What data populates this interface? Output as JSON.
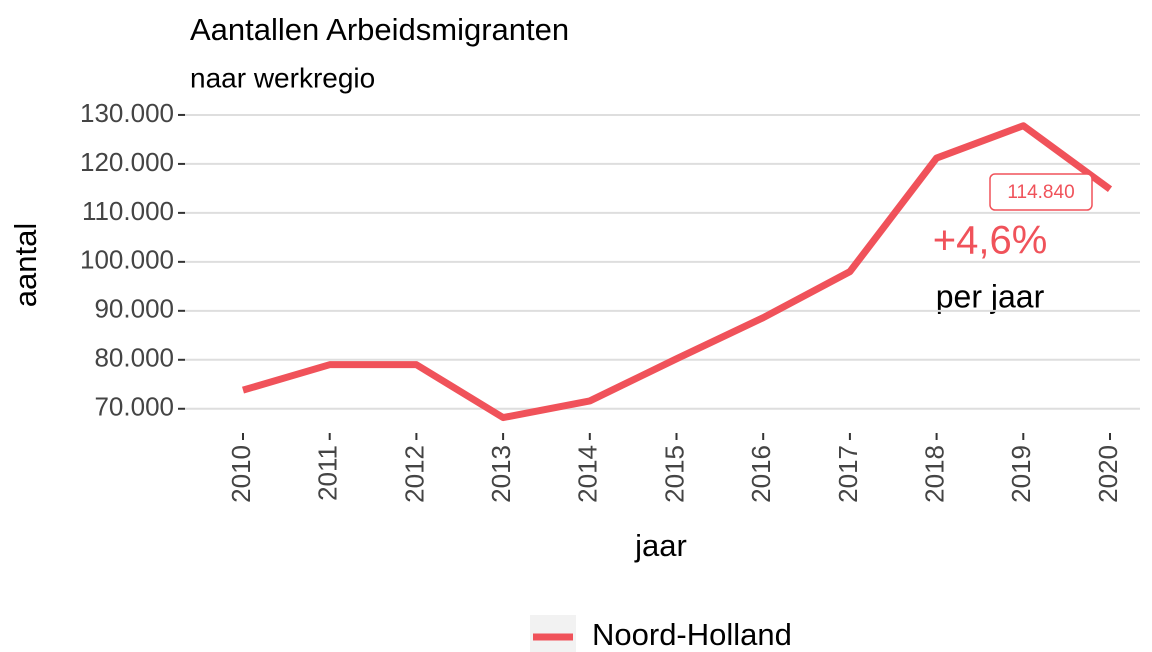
{
  "chart_data": {
    "type": "line",
    "title": "Aantallen Arbeidsmigranten",
    "subtitle": "naar werkregio",
    "xlabel": "jaar",
    "ylabel": "aantal",
    "categories": [
      "2010",
      "2011",
      "2012",
      "2013",
      "2014",
      "2015",
      "2016",
      "2017",
      "2018",
      "2019",
      "2020"
    ],
    "series": [
      {
        "name": "Noord-Holland",
        "color": "#f0525a",
        "values": [
          73800,
          79000,
          79000,
          68200,
          71600,
          80200,
          88600,
          98000,
          121200,
          127800,
          114840
        ],
        "value_labels": [
          null,
          null,
          null,
          null,
          null,
          null,
          null,
          null,
          null,
          null,
          "114.840"
        ]
      }
    ],
    "ylim": [
      67500,
      131500
    ],
    "yticks": [
      {
        "value": 70000,
        "label": "70.000"
      },
      {
        "value": 80000,
        "label": "80.000"
      },
      {
        "value": 90000,
        "label": "90.000"
      },
      {
        "value": 100000,
        "label": "100.000"
      },
      {
        "value": 110000,
        "label": "110.000"
      },
      {
        "value": 120000,
        "label": "120.000"
      },
      {
        "value": 130000,
        "label": "130.000"
      }
    ],
    "grid": true,
    "legend": "bottom",
    "annotations": [
      "+4,6%",
      "per jaar"
    ]
  }
}
